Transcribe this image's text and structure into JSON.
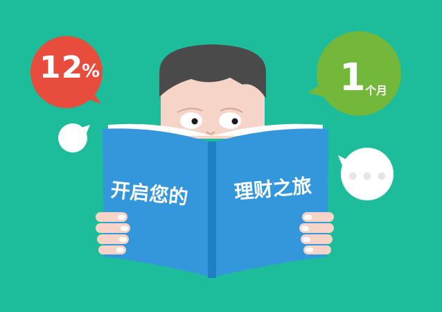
{
  "bubbles": {
    "rate": {
      "number": "12",
      "unit": "%",
      "color": "#e84c3d"
    },
    "term": {
      "number": "1",
      "unit": "个月",
      "color": "#73b83a"
    },
    "chat": {
      "dots": "•••",
      "color": "#ffffff"
    }
  },
  "book": {
    "left_title": "开启您的",
    "right_title": "理财之旅",
    "cover_color": "#3496db",
    "spine_color": "#1e7fc2"
  },
  "colors": {
    "background": "#1dbc9a",
    "hair": "#4a4a4a",
    "skin": "#f6d5c8"
  },
  "icons": {
    "character": "reading-person",
    "book": "open-book"
  }
}
